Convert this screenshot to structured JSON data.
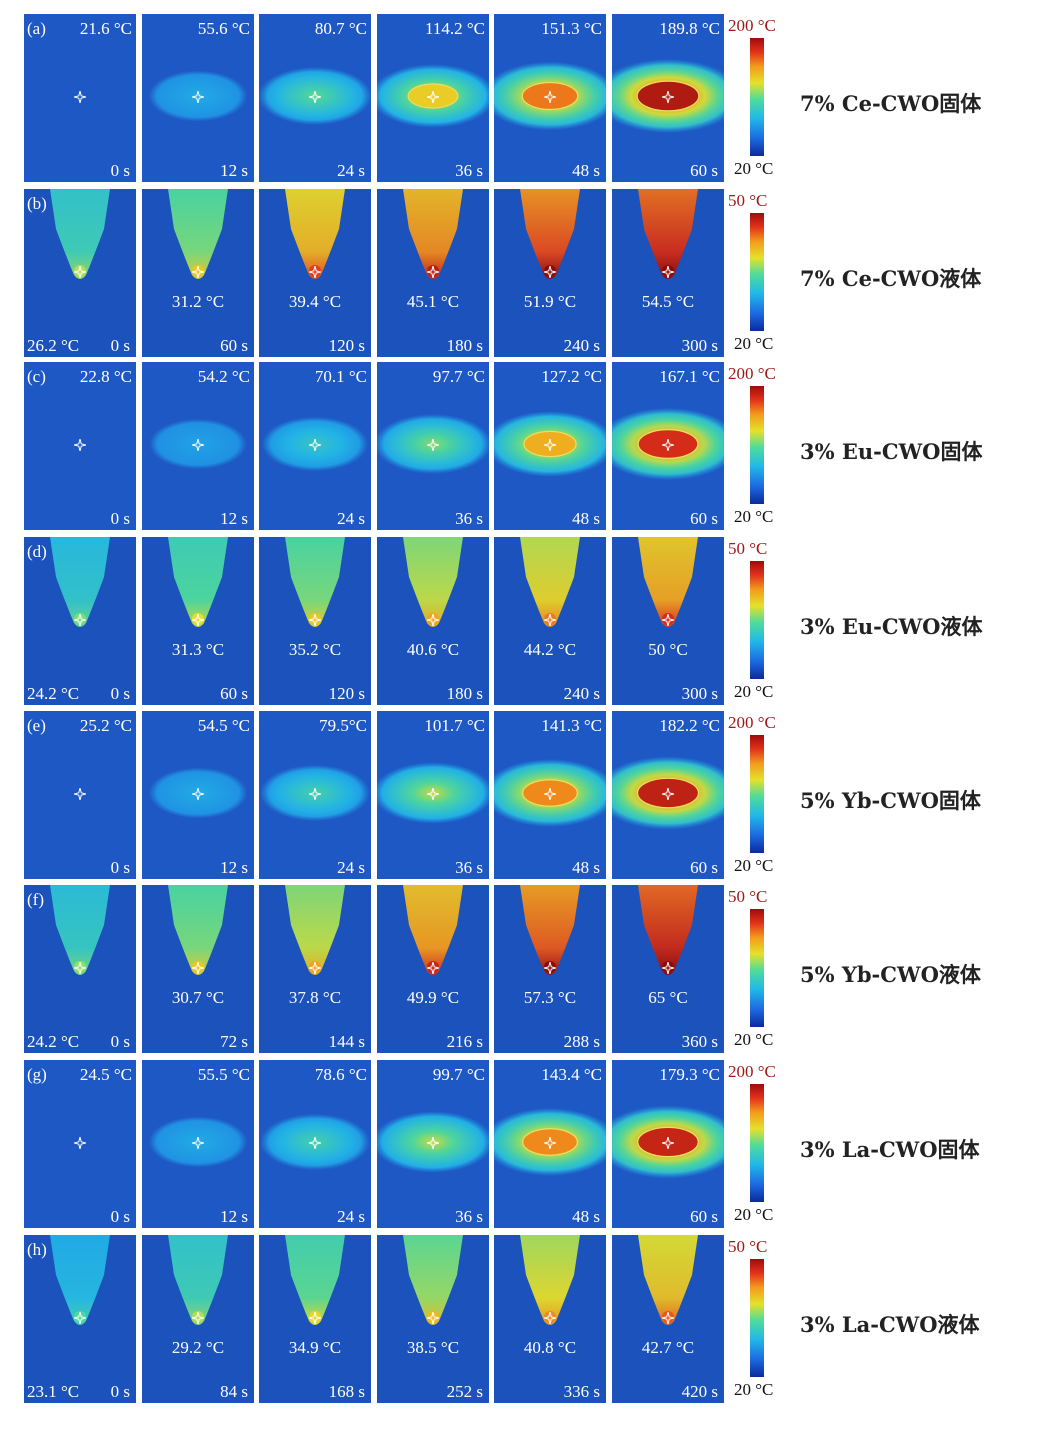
{
  "figure": {
    "rows": [
      {
        "label": "(a)",
        "type": "solid",
        "sample": "7% Ce-CWO固体",
        "cbar_max": "200 °C",
        "cbar_min": "20 °C",
        "temps": [
          "21.6 °C",
          "55.6 °C",
          "80.7 °C",
          "114.2 °C",
          "151.3 °C",
          "189.8 °C"
        ],
        "times": [
          "0 s",
          "12 s",
          "24 s",
          "36 s",
          "48 s",
          "60 s"
        ],
        "heat": [
          0.0,
          0.3,
          0.5,
          0.66,
          0.8,
          0.95
        ]
      },
      {
        "label": "(b)",
        "type": "liquid",
        "sample": "7% Ce-CWO液体",
        "cbar_max": "50 °C",
        "cbar_min": "20 °C",
        "temps": [
          "26.2 °C",
          "31.2 °C",
          "39.4 °C",
          "45.1 °C",
          "51.9 °C",
          "54.5 °C"
        ],
        "times": [
          "0 s",
          "60 s",
          "120 s",
          "180 s",
          "240 s",
          "300 s"
        ],
        "heat": [
          0.45,
          0.55,
          0.75,
          0.82,
          0.9,
          0.95
        ]
      },
      {
        "label": "(c)",
        "type": "solid",
        "sample": "3% Eu-CWO固体",
        "cbar_max": "200 °C",
        "cbar_min": "20 °C",
        "temps": [
          "22.8 °C",
          "54.2 °C",
          "70.1 °C",
          "97.7 °C",
          "127.2 °C",
          "167.1 °C"
        ],
        "times": [
          "0 s",
          "12 s",
          "24 s",
          "36 s",
          "48 s",
          "60 s"
        ],
        "heat": [
          0.0,
          0.28,
          0.4,
          0.55,
          0.72,
          0.9
        ]
      },
      {
        "label": "(d)",
        "type": "liquid",
        "sample": "3% Eu-CWO液体",
        "cbar_max": "50 °C",
        "cbar_min": "20 °C",
        "temps": [
          "24.2 °C",
          "31.3 °C",
          "35.2 °C",
          "40.6 °C",
          "44.2 °C",
          "50 °C"
        ],
        "times": [
          "0 s",
          "60 s",
          "120 s",
          "180 s",
          "240 s",
          "300 s"
        ],
        "heat": [
          0.4,
          0.5,
          0.55,
          0.62,
          0.68,
          0.78
        ]
      },
      {
        "label": "(e)",
        "type": "solid",
        "sample": "5% Yb-CWO固体",
        "cbar_max": "200 °C",
        "cbar_min": "20 °C",
        "temps": [
          "25.2 °C",
          "54.5 °C",
          "79.5°C",
          "101.7 °C",
          "141.3 °C",
          "182.2 °C"
        ],
        "times": [
          "0 s",
          "12 s",
          "24 s",
          "36 s",
          "48 s",
          "60 s"
        ],
        "heat": [
          0.05,
          0.3,
          0.45,
          0.6,
          0.78,
          0.93
        ]
      },
      {
        "label": "(f)",
        "type": "liquid",
        "sample": "5% Yb-CWO液体",
        "cbar_max": "50 °C",
        "cbar_min": "20 °C",
        "temps": [
          "24.2 °C",
          "30.7 °C",
          "37.8 °C",
          "49.9 °C",
          "57.3 °C",
          "65 °C"
        ],
        "times": [
          "0 s",
          "72 s",
          "144 s",
          "216 s",
          "288 s",
          "360 s"
        ],
        "heat": [
          0.42,
          0.55,
          0.62,
          0.8,
          0.88,
          0.96
        ]
      },
      {
        "label": "(g)",
        "type": "solid",
        "sample": "3% La-CWO固体",
        "cbar_max": "200 °C",
        "cbar_min": "20 °C",
        "temps": [
          "24.5 °C",
          "55.5 °C",
          "78.6 °C",
          "99.7 °C",
          "143.4 °C",
          "179.3 °C"
        ],
        "times": [
          "0 s",
          "12 s",
          "24 s",
          "36 s",
          "48 s",
          "60 s"
        ],
        "heat": [
          0.03,
          0.3,
          0.45,
          0.6,
          0.78,
          0.92
        ]
      },
      {
        "label": "(h)",
        "type": "liquid",
        "sample": "3% La-CWO液体",
        "cbar_max": "50 °C",
        "cbar_min": "20 °C",
        "temps": [
          "23.1 °C",
          "29.2 °C",
          "34.9 °C",
          "38.5 °C",
          "40.8 °C",
          "42.7 °C"
        ],
        "times": [
          "0 s",
          "84 s",
          "168 s",
          "252 s",
          "336 s",
          "420 s"
        ],
        "heat": [
          0.35,
          0.45,
          0.52,
          0.58,
          0.66,
          0.72
        ]
      }
    ]
  }
}
